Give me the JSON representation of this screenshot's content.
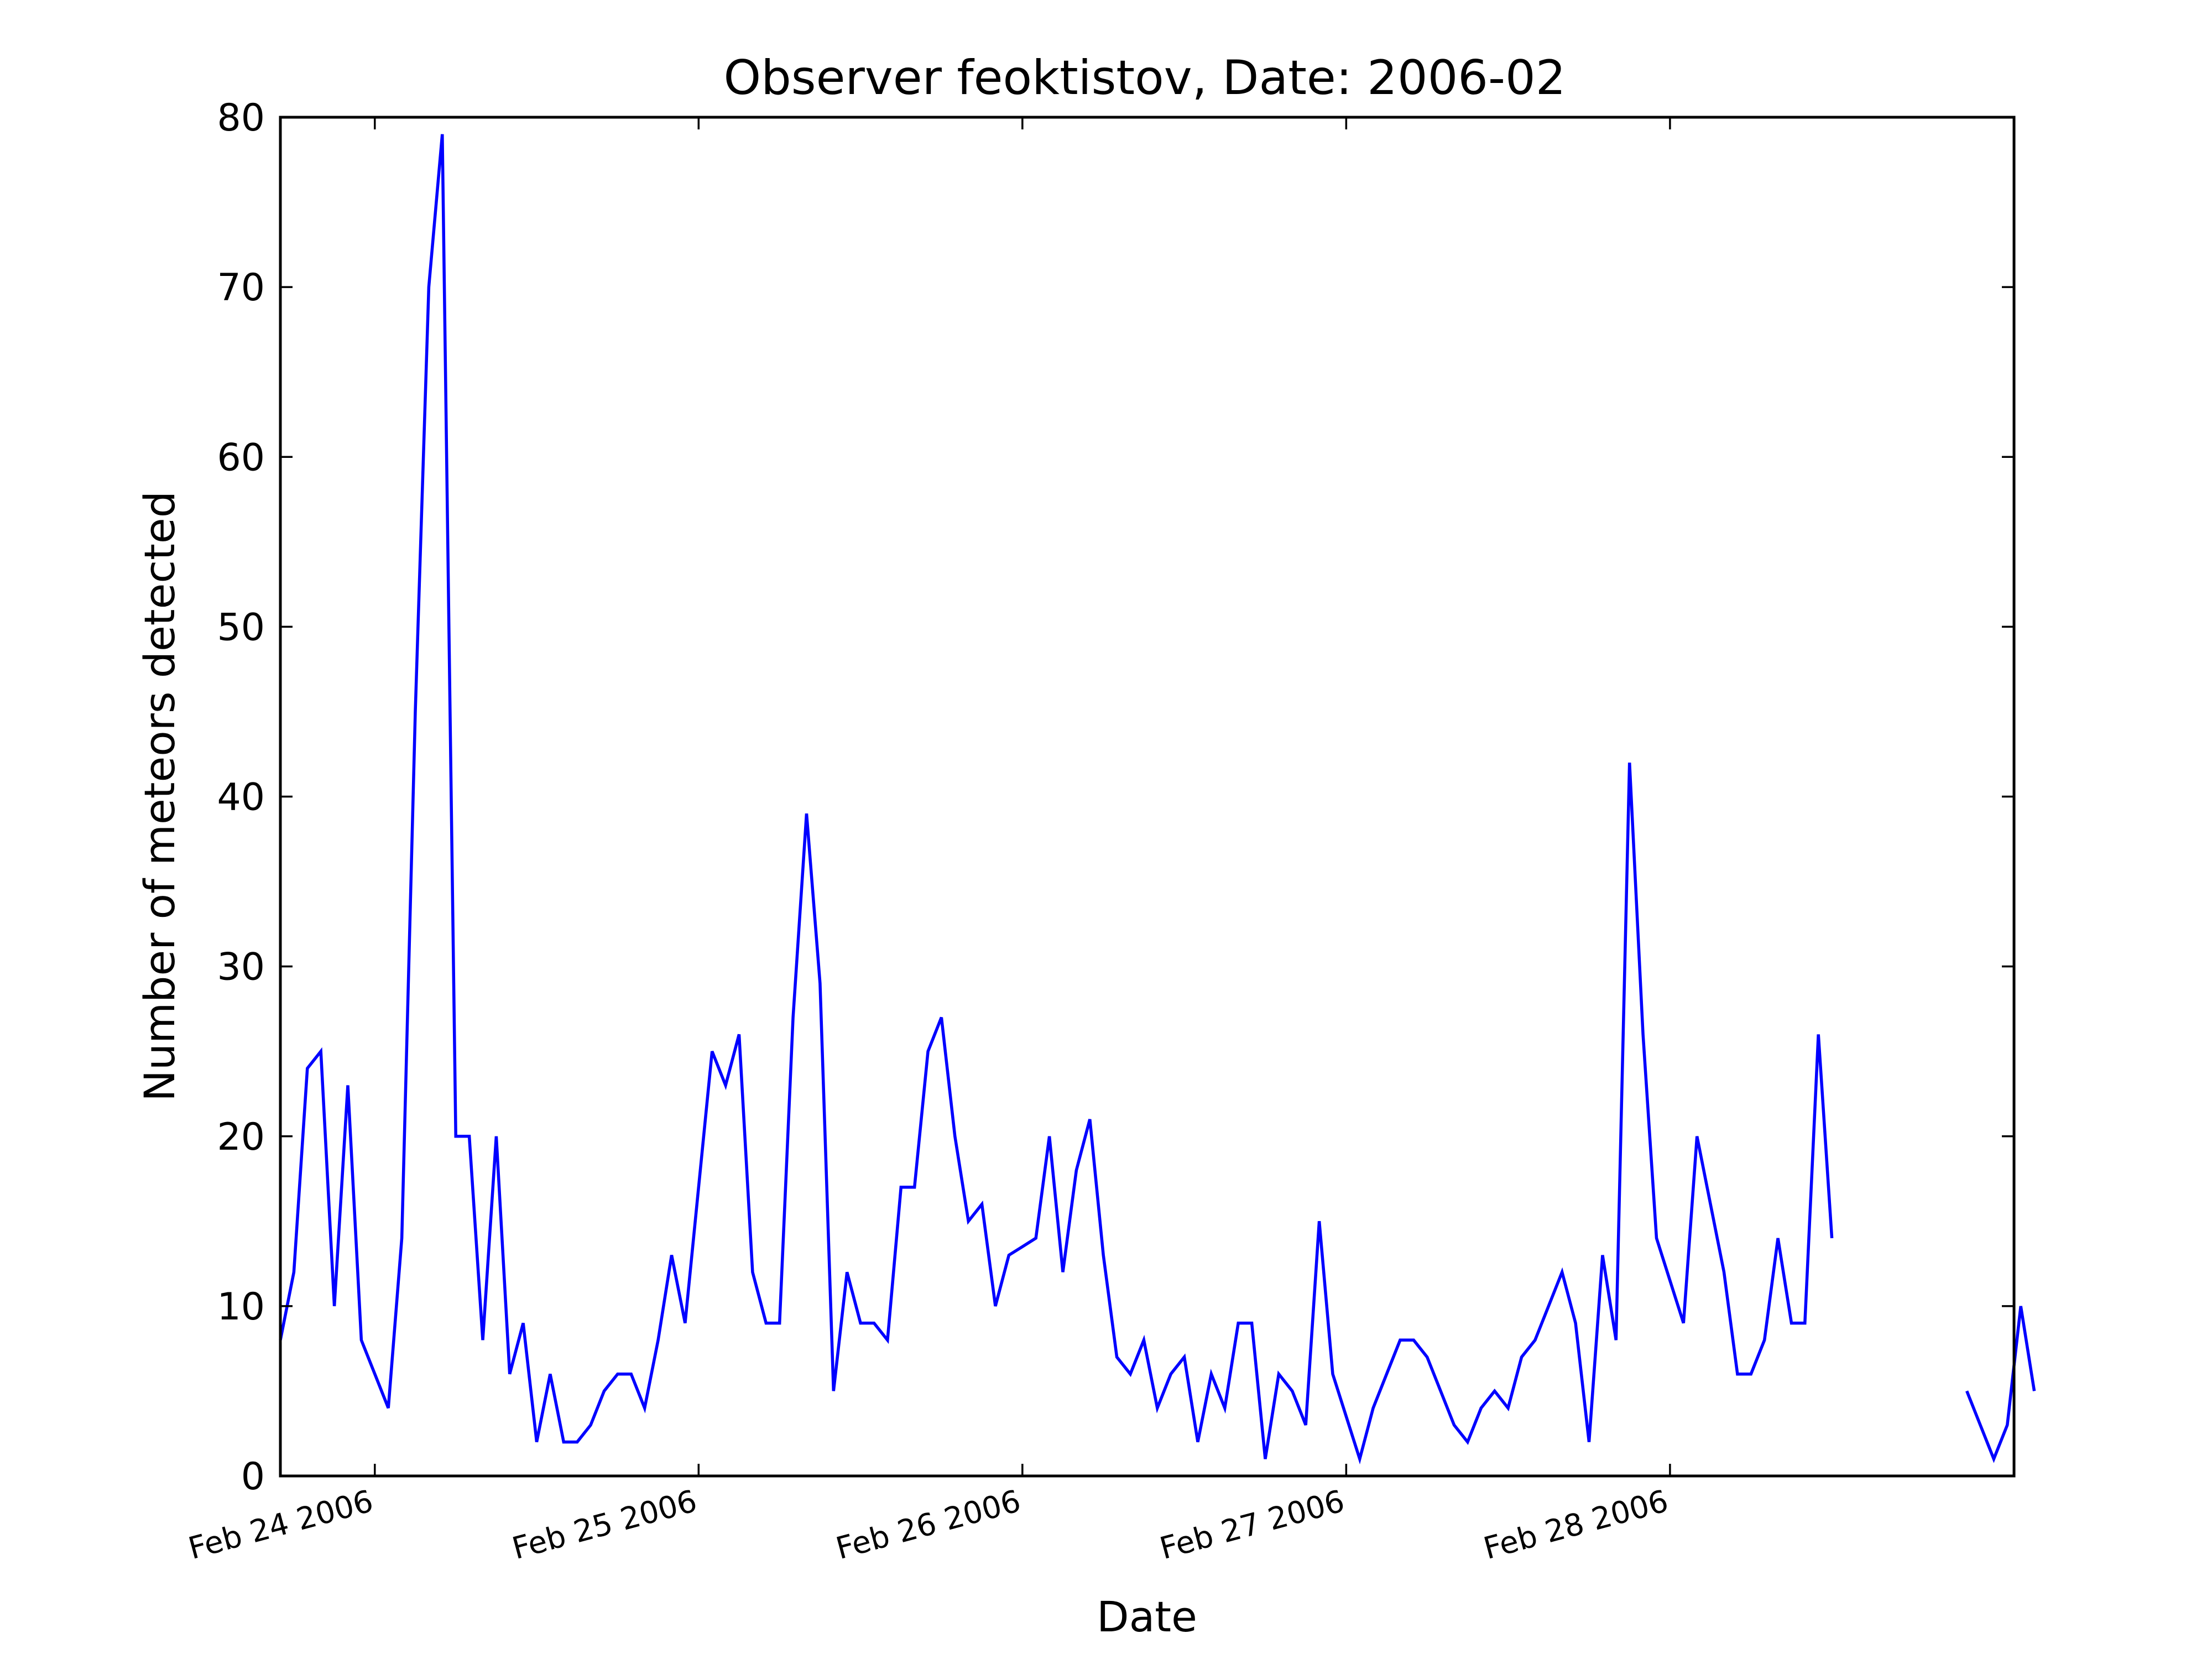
{
  "chart_data": {
    "type": "line",
    "title": "Observer feoktistov, Date: 2006-02",
    "xlabel": "Date",
    "ylabel": "Number of meteors detected",
    "ylim": [
      0,
      80
    ],
    "xlim": [
      "2006-02-23T17:00",
      "2006-02-29T01:30"
    ],
    "yticks": [
      0,
      10,
      20,
      30,
      40,
      50,
      60,
      70,
      80
    ],
    "xticks": [
      {
        "value": "2006-02-24T00:00",
        "label": "Feb 24 2006"
      },
      {
        "value": "2006-02-25T00:00",
        "label": "Feb 25 2006"
      },
      {
        "value": "2006-02-26T00:00",
        "label": "Feb 26 2006"
      },
      {
        "value": "2006-02-27T00:00",
        "label": "Feb 27 2006"
      },
      {
        "value": "2006-02-28T00:00",
        "label": "Feb 28 2006"
      }
    ],
    "grid": false,
    "legend": "none",
    "series": [
      {
        "color": "#0000ff",
        "segments": [
          {
            "start": "2006-02-23T17:00",
            "interval_hours": 1,
            "values": [
              8,
              12,
              24,
              25,
              10,
              23,
              8,
              6,
              4,
              14,
              45,
              70,
              79,
              20,
              20,
              8,
              20,
              6,
              9,
              2,
              6,
              2,
              2,
              3,
              5,
              6,
              6,
              4,
              8,
              13,
              9,
              17,
              25,
              23,
              26,
              12,
              9,
              9,
              27,
              39,
              29,
              5,
              12,
              9,
              9,
              8,
              17,
              17,
              25,
              27,
              20,
              15,
              16,
              10,
              13,
              13.5,
              14,
              20,
              12,
              18,
              21,
              13,
              7,
              6,
              8,
              4,
              6,
              7,
              2,
              6,
              4,
              9,
              9,
              1,
              6,
              5,
              3,
              15,
              6,
              3.5,
              1,
              4,
              6,
              8,
              8,
              7,
              5,
              3,
              2,
              4,
              5,
              4,
              7,
              8,
              10,
              12,
              9,
              2,
              13,
              8,
              42,
              26,
              14,
              11.5,
              9,
              20,
              16,
              12,
              6,
              6,
              8,
              14,
              9,
              9,
              26,
              14
            ]
          },
          {
            "start": "2006-02-28T22:00",
            "interval_hours": 1,
            "values": [
              5,
              3,
              1,
              3,
              10,
              5
            ]
          }
        ]
      }
    ]
  }
}
